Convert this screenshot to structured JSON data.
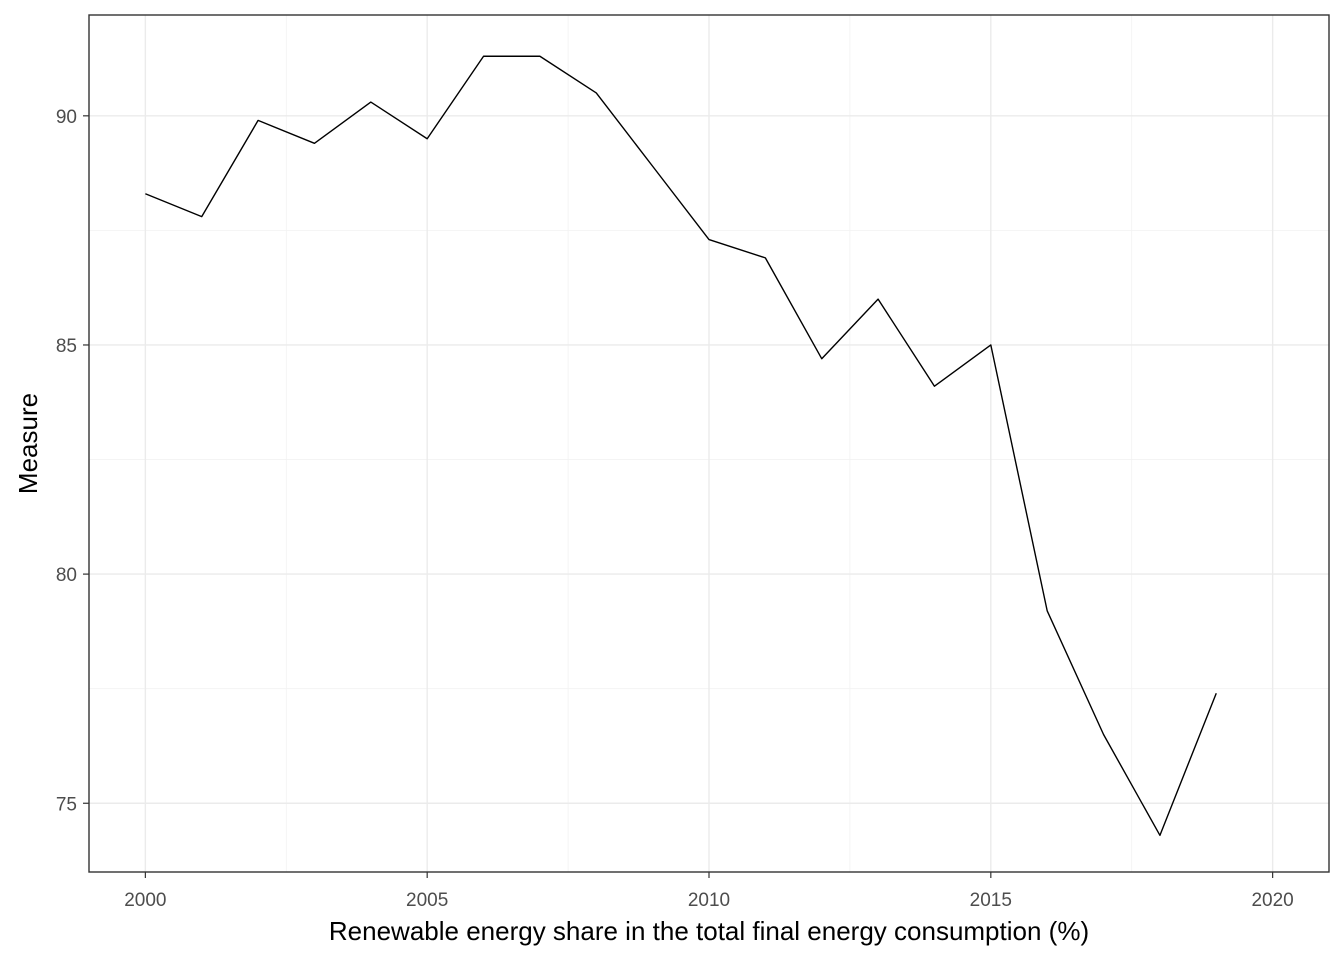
{
  "chart_data": {
    "type": "line",
    "xlabel": "Renewable energy share in the total final energy consumption (%)",
    "ylabel": "Measure",
    "xlim": [
      1999,
      2021
    ],
    "ylim": [
      73.5,
      92.2
    ],
    "x_ticks": [
      2000,
      2005,
      2010,
      2015,
      2020
    ],
    "y_ticks": [
      75,
      80,
      85,
      90
    ],
    "grid": true,
    "series": [
      {
        "x": [
          2000,
          2001,
          2002,
          2003,
          2004,
          2005,
          2006,
          2007,
          2008,
          2009,
          2010,
          2011,
          2012,
          2013,
          2014,
          2015,
          2016,
          2017,
          2018,
          2019
        ],
        "values": [
          88.3,
          87.8,
          89.9,
          89.4,
          90.3,
          89.5,
          91.3,
          91.3,
          90.5,
          88.9,
          87.3,
          86.9,
          84.7,
          86.0,
          84.1,
          85.0,
          79.2,
          76.5,
          74.3,
          77.4
        ]
      }
    ]
  }
}
